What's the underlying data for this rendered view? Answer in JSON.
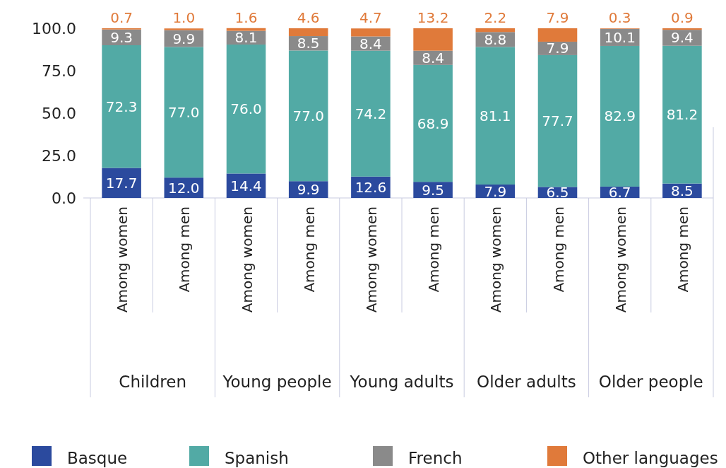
{
  "chart_data": {
    "type": "bar",
    "stacked": true,
    "categories": [
      "Among women",
      "Among men",
      "Among women",
      "Among men",
      "Among women",
      "Among men",
      "Among women",
      "Among men",
      "Among women",
      "Among men"
    ],
    "annotations": [
      "Children",
      "Young people",
      "Young adults",
      "Older adults",
      "Older people"
    ],
    "ylim": [
      0,
      100
    ],
    "yticks": [
      {
        "value": 0,
        "label": "0.0"
      },
      {
        "value": 25,
        "label": "25.0"
      },
      {
        "value": 50,
        "label": "50.0"
      },
      {
        "value": 75,
        "label": "75.0"
      },
      {
        "value": 100,
        "label": "100.0"
      }
    ],
    "legend": "bottom",
    "grid": "x",
    "series": [
      {
        "name": "Basque",
        "color": "#2b4a9e",
        "values": [
          17.7,
          12.0,
          14.4,
          9.9,
          12.6,
          9.5,
          7.9,
          6.5,
          6.7,
          8.5
        ],
        "value_labels": [
          "17.7",
          "12.0",
          "14.4",
          "9.9",
          "12.6",
          "9.5",
          "7.9",
          "6.5",
          "6.7",
          "8.5"
        ]
      },
      {
        "name": "Spanish",
        "color": "#52aaa5",
        "values": [
          72.3,
          77.0,
          76.0,
          77.0,
          74.2,
          68.9,
          81.1,
          77.7,
          82.9,
          81.2
        ],
        "value_labels": [
          "72.3",
          "77.0",
          "76.0",
          "77.0",
          "74.2",
          "68.9",
          "81.1",
          "77.7",
          "82.9",
          "81.2"
        ]
      },
      {
        "name": "French",
        "color": "#8a8a8a",
        "values": [
          9.3,
          9.9,
          8.1,
          8.5,
          8.4,
          8.4,
          8.8,
          7.9,
          10.1,
          9.4
        ],
        "value_labels": [
          "9.3",
          "9.9",
          "8.1",
          "8.5",
          "8.4",
          "8.4",
          "8.8",
          "7.9",
          "10.1",
          "9.4"
        ]
      },
      {
        "name": "Other languages",
        "color": "#e07a3a",
        "values": [
          0.7,
          1.0,
          1.6,
          4.6,
          4.7,
          13.2,
          2.2,
          7.9,
          0.3,
          0.9
        ],
        "value_labels": [
          "0.7",
          "1.0",
          "1.6",
          "4.6",
          "4.7",
          "13.2",
          "2.2",
          "7.9",
          "0.3",
          "0.9"
        ]
      }
    ]
  }
}
